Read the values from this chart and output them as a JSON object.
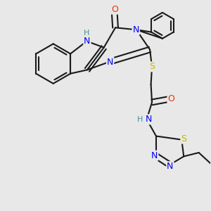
{
  "background_color": "#e8e8e8",
  "bond_color": "#1a1a1a",
  "bond_width": 1.5,
  "atom_colors": {
    "N": "#0000ee",
    "O": "#ee3300",
    "S": "#bbbb00",
    "H": "#4a9090",
    "C": "#1a1a1a"
  },
  "font_size": 9.0,
  "figsize": [
    3.0,
    3.0
  ],
  "dpi": 100,
  "xlim": [
    0,
    10
  ],
  "ylim": [
    0,
    10
  ]
}
